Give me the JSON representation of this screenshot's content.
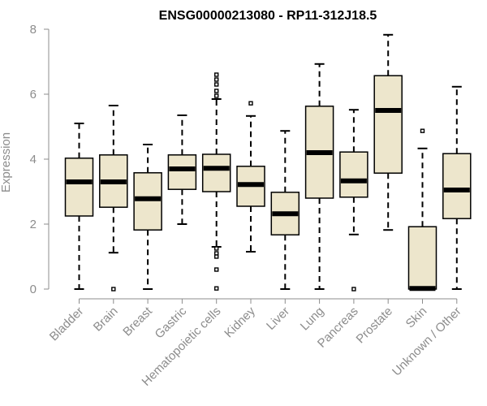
{
  "chart_data": {
    "type": "box",
    "title": "ENSG00000213080 - RP11-312J18.5",
    "xlabel": "",
    "ylabel": "Expression",
    "ylim": [
      0,
      8
    ],
    "yticks": [
      0,
      2,
      4,
      6,
      8
    ],
    "categories": [
      "Bladder",
      "Brain",
      "Breast",
      "Gastric",
      "Hematopoietic cells",
      "Kidney",
      "Liver",
      "Lung",
      "Pancreas",
      "Prostate",
      "Skin",
      "Unknown / Other"
    ],
    "boxes": [
      {
        "name": "Bladder",
        "min": 0,
        "q1": 2.25,
        "median": 3.3,
        "q3": 4.03,
        "max": 5.1,
        "outliers": []
      },
      {
        "name": "Brain",
        "min": 1.12,
        "q1": 2.52,
        "median": 3.3,
        "q3": 4.13,
        "max": 5.65,
        "outliers": [
          0
        ]
      },
      {
        "name": "Breast",
        "min": 0,
        "q1": 1.82,
        "median": 2.78,
        "q3": 3.58,
        "max": 4.45,
        "outliers": []
      },
      {
        "name": "Gastric",
        "min": 2.0,
        "q1": 3.07,
        "median": 3.7,
        "q3": 4.13,
        "max": 5.35,
        "outliers": []
      },
      {
        "name": "Hematopoietic cells",
        "min": 1.3,
        "q1": 3.0,
        "median": 3.72,
        "q3": 4.15,
        "max": 5.85,
        "outliers": [
          6.6,
          6.45,
          6.3,
          6.1,
          5.95,
          1.25,
          1.1,
          1.0,
          0.6,
          0.02
        ]
      },
      {
        "name": "Kidney",
        "min": 1.15,
        "q1": 2.55,
        "median": 3.22,
        "q3": 3.78,
        "max": 5.33,
        "outliers": [
          5.72
        ]
      },
      {
        "name": "Liver",
        "min": 0,
        "q1": 1.67,
        "median": 2.32,
        "q3": 2.98,
        "max": 4.87,
        "outliers": []
      },
      {
        "name": "Lung",
        "min": 0,
        "q1": 2.8,
        "median": 4.2,
        "q3": 5.63,
        "max": 6.93,
        "outliers": []
      },
      {
        "name": "Pancreas",
        "min": 1.68,
        "q1": 2.83,
        "median": 3.33,
        "q3": 4.22,
        "max": 5.52,
        "outliers": [
          0
        ]
      },
      {
        "name": "Prostate",
        "min": 1.82,
        "q1": 3.57,
        "median": 5.5,
        "q3": 6.57,
        "max": 7.83,
        "outliers": []
      },
      {
        "name": "Skin",
        "min": 0,
        "q1": 0,
        "median": 0.02,
        "q3": 1.92,
        "max": 4.33,
        "outliers": [
          4.87
        ]
      },
      {
        "name": "Unknown / Other",
        "min": 0,
        "q1": 2.17,
        "median": 3.05,
        "q3": 4.17,
        "max": 6.23,
        "outliers": []
      }
    ],
    "grid": false,
    "legend": "none"
  },
  "colors": {
    "box_fill": "#ede6cc",
    "stroke": "#000000",
    "axis_text": "#8c8c8c"
  }
}
